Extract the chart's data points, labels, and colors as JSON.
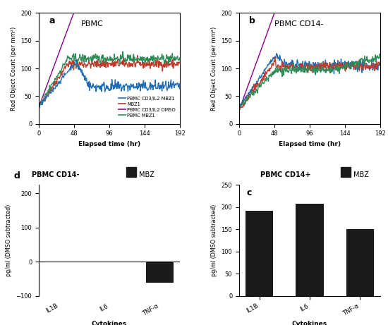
{
  "panel_a_title": "PBMC",
  "panel_b_title": "PBMC CD14-",
  "panel_c_title": "PBMC CD14+",
  "panel_d_title": "PBMC CD14-",
  "legend_label_mbz_box": "MBZ",
  "line_ylabel": "Red Object Count (per mm²)",
  "line_xlabel": "Elapsed time (hr)",
  "bar_ylabel": "pg/ml (DMSO subtracted)",
  "bar_xlabel": "Cytokines",
  "line_yticks": [
    0,
    50,
    100,
    150,
    200
  ],
  "line_xticks": [
    0,
    48,
    96,
    144,
    192
  ],
  "line_ylim": [
    0,
    200
  ],
  "line_xlim": [
    0,
    192
  ],
  "bar_categories": [
    "IL1B",
    "IL6",
    "TNF-α"
  ],
  "bar_c_values": [
    191,
    207,
    151
  ],
  "bar_d_values": [
    0,
    0,
    -62
  ],
  "bar_color": "#1a1a1a",
  "line_colors": {
    "blue": "#1f6eb5",
    "red": "#c0392b",
    "purple": "#8b008b",
    "green": "#2e8b57"
  },
  "legend_labels": [
    "PBMC CD3/IL2 MBZ1",
    "MBZ1",
    "PBMC CD3/IL2 DMSO",
    "PBMC MBZ1"
  ],
  "background_color": "#ffffff"
}
